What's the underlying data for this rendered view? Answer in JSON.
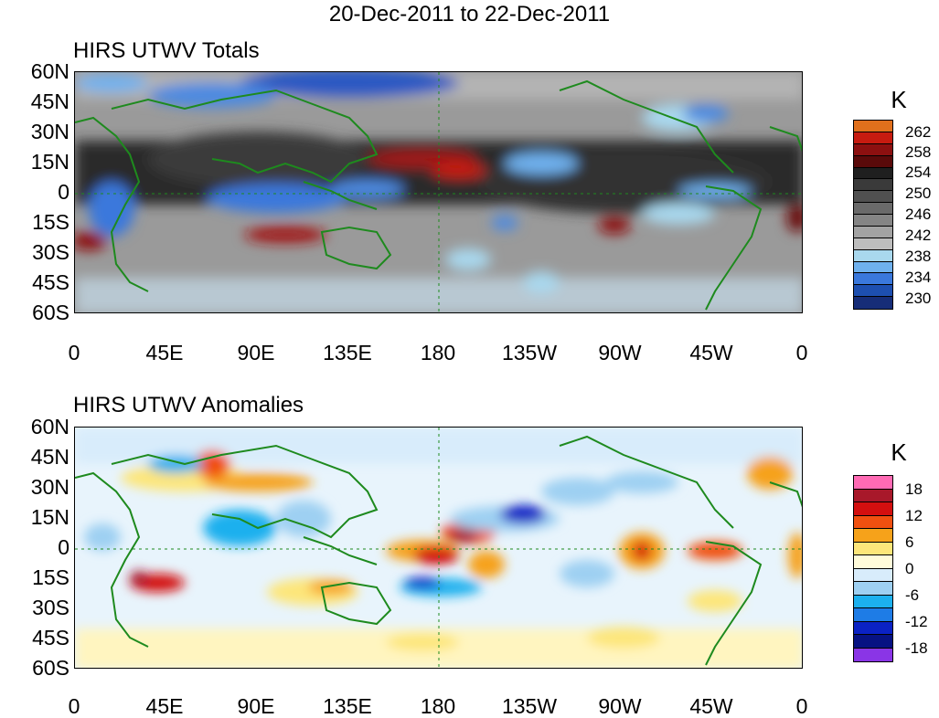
{
  "title": "20-Dec-2011 to 22-Dec-2011",
  "y_ticks": [
    "60N",
    "45N",
    "30N",
    "15N",
    "0",
    "15S",
    "30S",
    "45S",
    "60S"
  ],
  "x_ticks": [
    "0",
    "45E",
    "90E",
    "135E",
    "180",
    "135W",
    "90W",
    "45W",
    "0"
  ],
  "panels": [
    {
      "id": "totals",
      "title": "HIRS UTWV Totals",
      "units": "K",
      "legend_labels": [
        "262",
        "258",
        "254",
        "250",
        "246",
        "242",
        "238",
        "234",
        "230"
      ],
      "legend_colors": [
        "#e0701c",
        "#c71b10",
        "#8c1010",
        "#5a0a0a",
        "#1f1f1f",
        "#3a3a3a",
        "#505050",
        "#6a6a6a",
        "#858585",
        "#a3a3a3",
        "#bdbdbd",
        "#a9d8ee",
        "#6fb1ee",
        "#3a78dc",
        "#1d4fb0",
        "#162d78"
      ]
    },
    {
      "id": "anomalies",
      "title": "HIRS UTWV Anomalies",
      "units": "K",
      "legend_labels": [
        "18",
        "12",
        "6",
        "0",
        "-6",
        "-12",
        "-18"
      ],
      "legend_colors": [
        "#ff6ab4",
        "#a8182a",
        "#d30f0f",
        "#f05010",
        "#f6a21a",
        "#fde67a",
        "#fffbda",
        "#d8ecfb",
        "#9ed0f2",
        "#1cb0ee",
        "#1e7ce6",
        "#0b22c4",
        "#071283",
        "#8a35e6"
      ]
    }
  ],
  "chart_data": [
    {
      "type": "heatmap",
      "title": "HIRS UTWV Totals",
      "date_range": "20-Dec-2011 to 22-Dec-2011",
      "units": "K",
      "x_ticks": [
        "0",
        "45E",
        "90E",
        "135E",
        "180",
        "135W",
        "90W",
        "45W",
        "0"
      ],
      "y_ticks": [
        "60N",
        "45N",
        "30N",
        "15N",
        "0",
        "15S",
        "30S",
        "45S",
        "60S"
      ],
      "xlim": [
        0,
        360
      ],
      "ylim": [
        -60,
        60
      ],
      "colorbar_labels": [
        262,
        258,
        254,
        250,
        246,
        242,
        238,
        234,
        230
      ]
    },
    {
      "type": "heatmap",
      "title": "HIRS UTWV Anomalies",
      "date_range": "20-Dec-2011 to 22-Dec-2011",
      "units": "K",
      "x_ticks": [
        "0",
        "45E",
        "90E",
        "135E",
        "180",
        "135W",
        "90W",
        "45W",
        "0"
      ],
      "y_ticks": [
        "60N",
        "45N",
        "30N",
        "15N",
        "0",
        "15S",
        "30S",
        "45S",
        "60S"
      ],
      "xlim": [
        0,
        360
      ],
      "ylim": [
        -60,
        60
      ],
      "colorbar_labels": [
        18,
        12,
        6,
        0,
        -6,
        -12,
        -18
      ]
    }
  ]
}
